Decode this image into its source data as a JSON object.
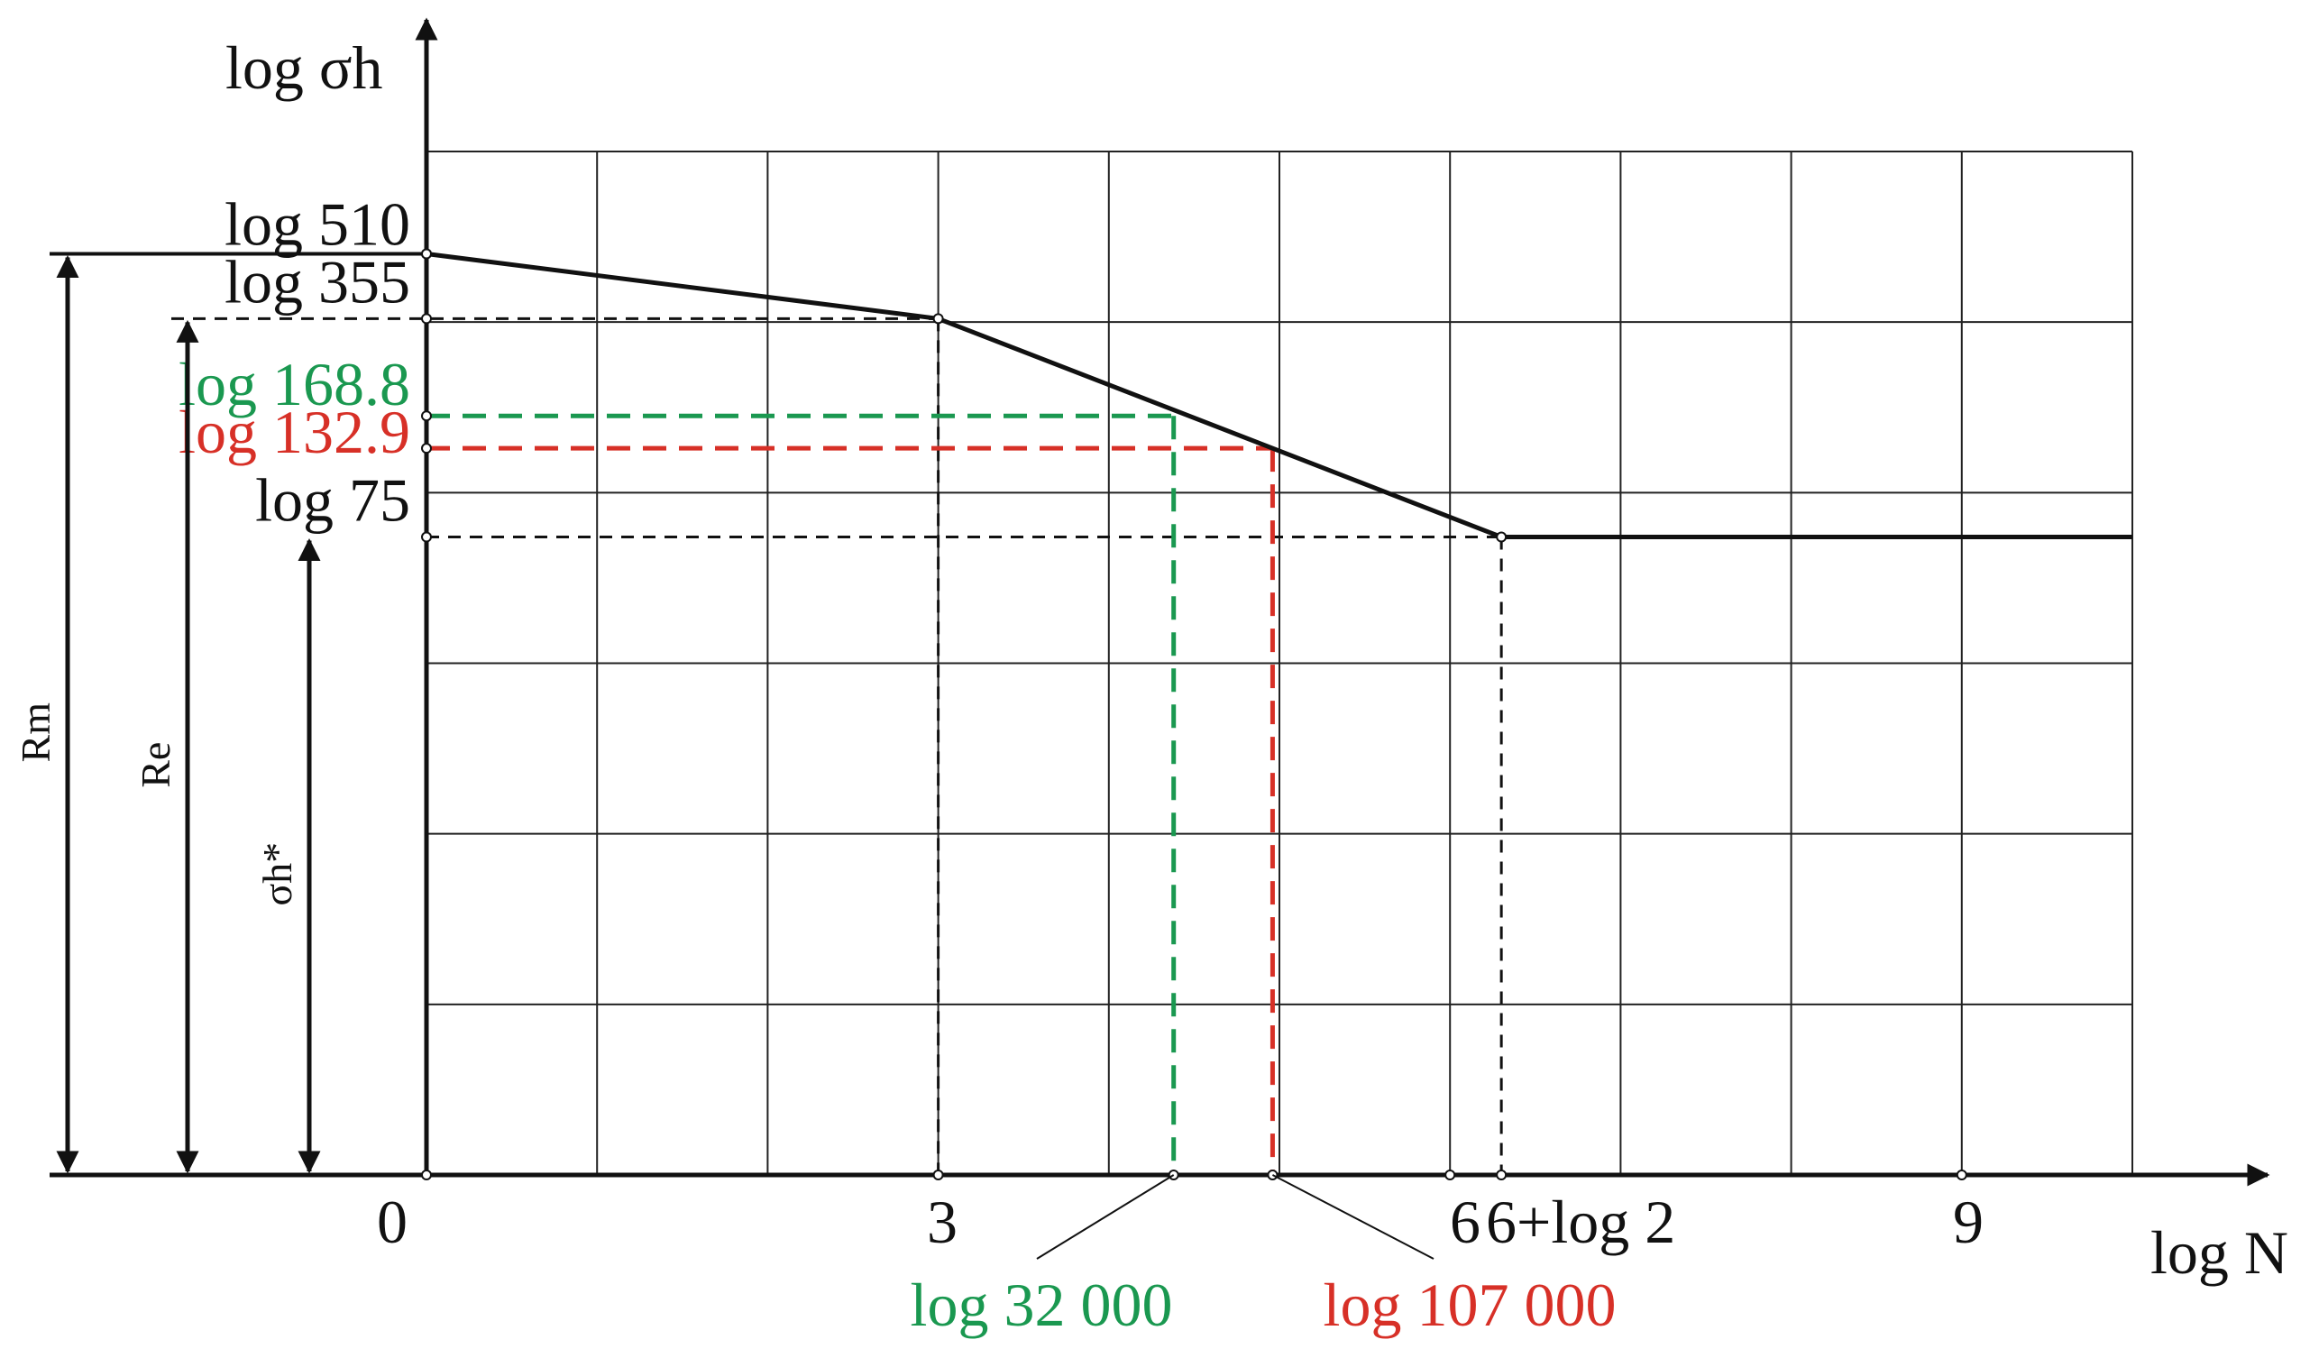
{
  "chart_data": {
    "type": "line",
    "title": "",
    "xlabel": "log N",
    "ylabel": "log σh",
    "xlim": [
      0,
      10
    ],
    "ylim": [
      0,
      6
    ],
    "x_ticks": [
      {
        "value": 0,
        "label": "0"
      },
      {
        "value": 3,
        "label": "3"
      },
      {
        "value": 6,
        "label": "6"
      },
      {
        "value": 6.301,
        "label": "6+log 2"
      },
      {
        "value": 9,
        "label": "9"
      }
    ],
    "y_ticks": [
      {
        "value": 5.4,
        "label": "log 510",
        "color": "#111111"
      },
      {
        "value": 5.02,
        "label": "log 355",
        "color": "#111111"
      },
      {
        "value": 4.45,
        "label": "log 168.8",
        "color": "#1a9850"
      },
      {
        "value": 4.26,
        "label": "log 132.9",
        "color": "#d73027"
      },
      {
        "value": 3.74,
        "label": "log 75",
        "color": "#111111"
      }
    ],
    "series": [
      {
        "color": "#111111",
        "points": [
          [
            0,
            5.4
          ],
          [
            3,
            5.02
          ],
          [
            6.301,
            3.74
          ],
          [
            10,
            3.74
          ]
        ]
      }
    ],
    "reference_lines": [
      {
        "label": "log 32 000",
        "color": "#1a9850",
        "x": 4.38,
        "y": 4.45
      },
      {
        "label": "log 107 000",
        "color": "#d73027",
        "x": 4.96,
        "y": 4.26
      }
    ],
    "dimension_arrows": [
      {
        "label": "Rm",
        "to_y": 5.4
      },
      {
        "label": "Re",
        "to_y": 5.02
      },
      {
        "label": "σh*",
        "to_y": 3.74
      }
    ],
    "grid": true
  }
}
